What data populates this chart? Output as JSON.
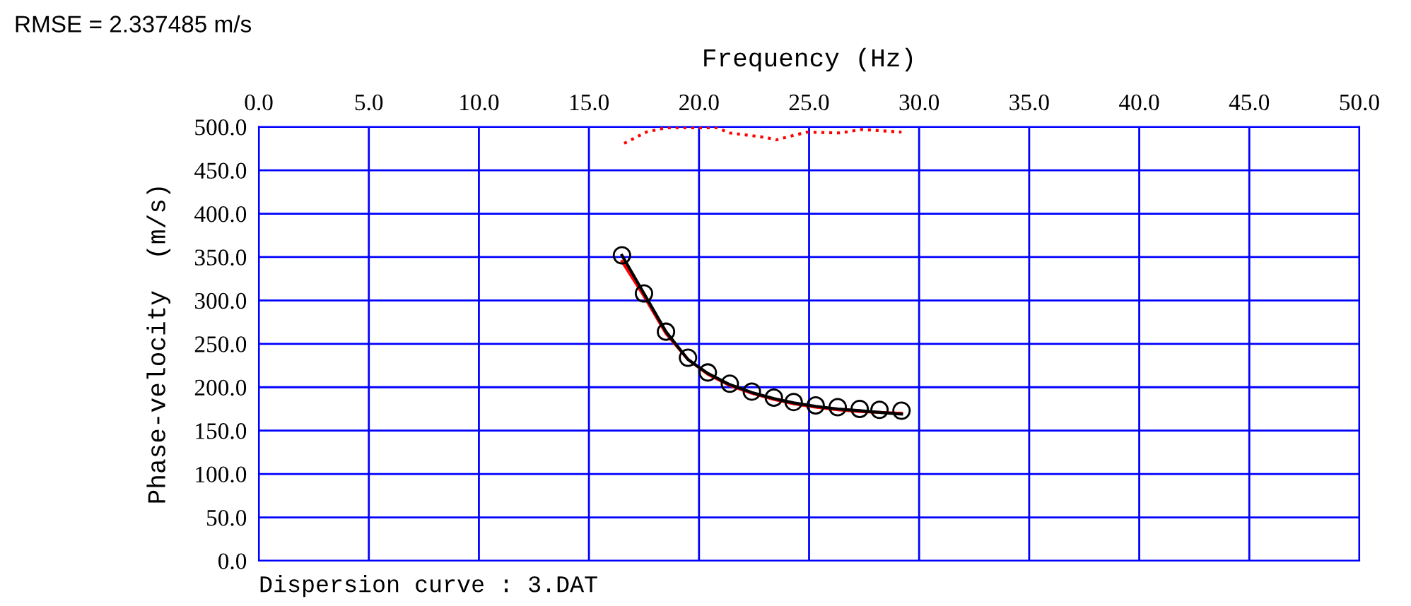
{
  "chart_data": {
    "type": "line",
    "xlabel": "Frequency (Hz)",
    "ylabel": "Phase-velocity  (m/s)",
    "annotations": [
      "RMSE = 2.337485 m/s",
      "Dispersion curve : 3.DAT"
    ],
    "series": [
      {
        "color": "#ff0000",
        "line_style": "dotted",
        "x": [
          16.6,
          17.6,
          18.5,
          20.8,
          21.4,
          23.0,
          23.5,
          24.9,
          26.4,
          27.4,
          29.2
        ],
        "values": [
          481,
          494,
          499,
          499,
          493,
          488,
          485,
          494,
          493,
          497,
          494
        ]
      },
      {
        "color": "#ff0000",
        "line_style": "solid",
        "x": [
          16.5,
          17.5,
          18.5,
          19.5,
          20.4,
          21.4,
          22.4,
          23.4,
          24.3,
          25.3,
          26.3,
          27.3,
          28.2,
          29.2
        ],
        "values": [
          345,
          305,
          262,
          232,
          215,
          202,
          193,
          186,
          181,
          177,
          174,
          172,
          171,
          170
        ]
      },
      {
        "color": "#000000",
        "line_style": "solid",
        "x": [
          16.5,
          17.5,
          18.5,
          19.5,
          20.4,
          21.4,
          22.4,
          23.4,
          24.3,
          25.3,
          26.3,
          27.3,
          28.2,
          29.2
        ],
        "values": [
          352,
          308,
          264,
          232,
          216,
          203,
          194,
          187,
          182,
          178,
          175,
          173,
          171,
          169
        ]
      },
      {
        "type": "scatter",
        "color": "#000000",
        "marker": "circle",
        "x": [
          16.5,
          17.5,
          18.5,
          19.5,
          20.4,
          21.4,
          22.4,
          23.4,
          24.3,
          25.3,
          26.3,
          27.3,
          28.2,
          29.2
        ],
        "values": [
          352,
          308,
          264,
          234,
          217,
          204,
          195,
          188,
          183,
          179,
          177,
          175,
          174,
          173
        ]
      }
    ],
    "xlim": [
      0,
      50
    ],
    "ylim": [
      0,
      500
    ],
    "xticks": [
      {
        "value": 0,
        "label": "0.0"
      },
      {
        "value": 5,
        "label": "5.0"
      },
      {
        "value": 10,
        "label": "10.0"
      },
      {
        "value": 15,
        "label": "15.0"
      },
      {
        "value": 20,
        "label": "20.0"
      },
      {
        "value": 25,
        "label": "25.0"
      },
      {
        "value": 30,
        "label": "30.0"
      },
      {
        "value": 35,
        "label": "35.0"
      },
      {
        "value": 40,
        "label": "40.0"
      },
      {
        "value": 45,
        "label": "45.0"
      },
      {
        "value": 50,
        "label": "50.0"
      }
    ],
    "yticks": [
      {
        "value": 0,
        "label": "0.0"
      },
      {
        "value": 50,
        "label": "50.0"
      },
      {
        "value": 100,
        "label": "100.0"
      },
      {
        "value": 150,
        "label": "150.0"
      },
      {
        "value": 200,
        "label": "200.0"
      },
      {
        "value": 250,
        "label": "250.0"
      },
      {
        "value": 300,
        "label": "300.0"
      },
      {
        "value": 350,
        "label": "350.0"
      },
      {
        "value": 400,
        "label": "400.0"
      },
      {
        "value": 450,
        "label": "450.0"
      },
      {
        "value": 500,
        "label": "500.0"
      }
    ],
    "grid": true
  }
}
